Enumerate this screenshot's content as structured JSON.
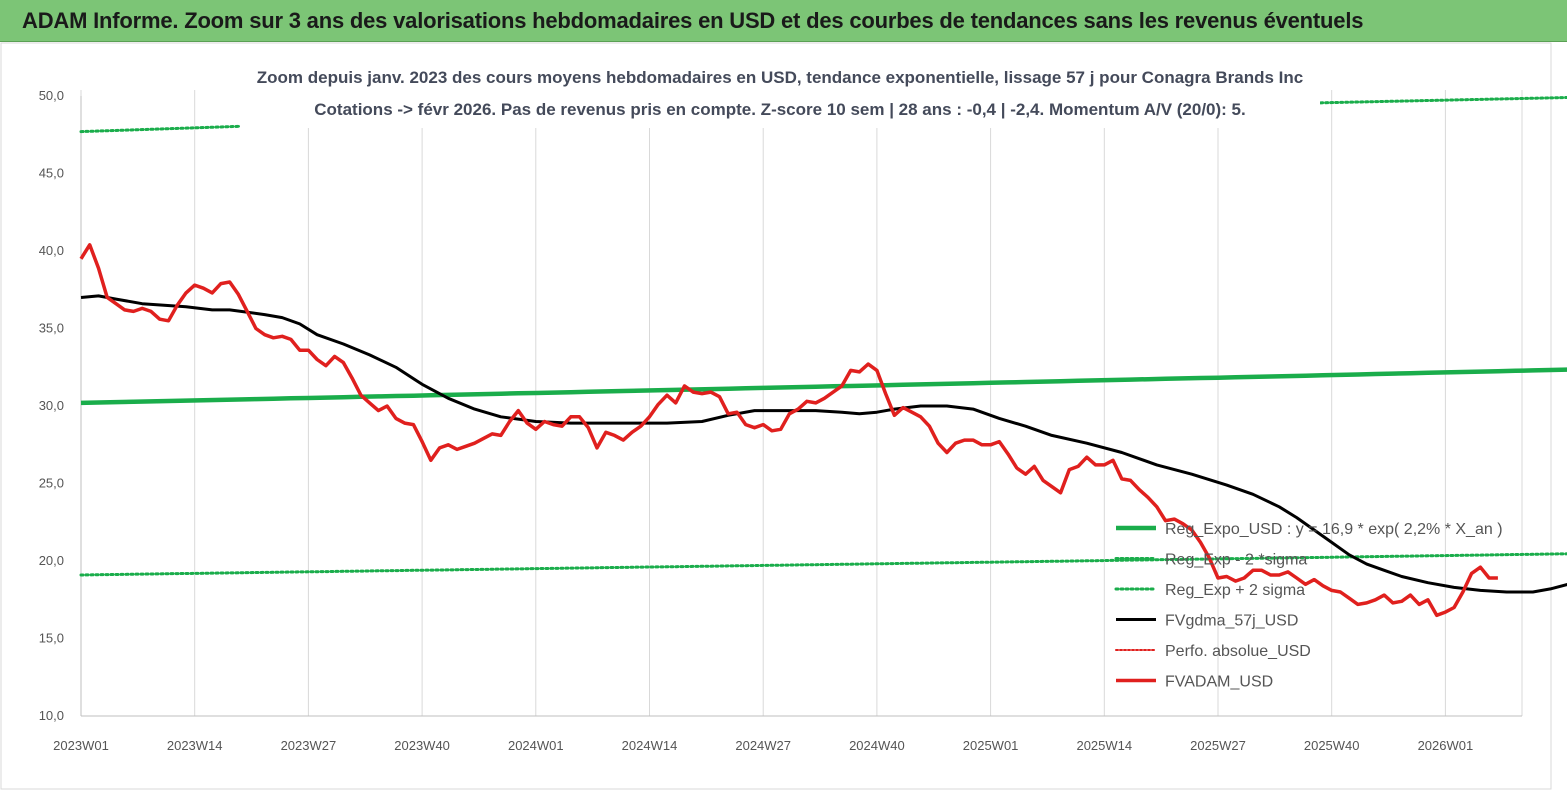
{
  "header": {
    "title": "ADAM Informe. Zoom sur 3 ans des valorisations hebdomadaires en USD et des courbes de tendances sans les revenus éventuels"
  },
  "chart_data": {
    "type": "line",
    "subtitle_line1": "Zoom depuis janv. 2023 des cours moyens hebdomadaires en USD, tendance exponentielle, lissage 57 j pour Conagra Brands Inc",
    "subtitle_line2": "Cotations -> févr 2026.  Pas de revenus pris en compte. Z-score 10 sem  | 28 ans : -0,4 | -2,4. Momentum A/V (20/0): 5.",
    "ylim": [
      10,
      50
    ],
    "y_ticks": [
      "10,0",
      "15,0",
      "20,0",
      "25,0",
      "30,0",
      "35,0",
      "40,0",
      "45,0",
      "50,0"
    ],
    "x_ticks": [
      "2023W01",
      "2023W14",
      "2023W27",
      "2023W40",
      "2024W01",
      "2024W14",
      "2024W27",
      "2024W40",
      "2025W01",
      "2025W14",
      "2025W27",
      "2025W40",
      "2026W01"
    ],
    "x_weeks_per_tick": 13,
    "x_total_weeks": 163,
    "grid": "vertical",
    "legend_position": "bottom-right",
    "colors": {
      "reg_expo": "#1aad4b",
      "sigma": "#1aad4b",
      "fvgdma": "#000000",
      "perfo": "#e0201e",
      "fvadam": "#e0201e",
      "grid": "#d9d9d9",
      "banner": "#7cc576"
    },
    "legend": [
      "Reg_Expo_USD : y = 16,9 * exp( 2,2% *  X_an )",
      "Reg_Exp - 2 *sigma",
      "Reg_Exp + 2 sigma",
      "FVgdma_57j_USD",
      "Perfo. absolue_USD",
      "FVADAM_USD"
    ],
    "series": [
      {
        "key": "reg_expo",
        "start": 30.2,
        "end": 32.4
      },
      {
        "key": "sigma_minus",
        "start": 19.1,
        "end": 20.5
      },
      {
        "key": "sigma_plus",
        "points": [
          [
            0,
            47.7
          ],
          [
            21,
            48.1
          ],
          [
            178,
            50.0
          ]
        ]
      },
      {
        "key": "fvgdma",
        "points": [
          [
            0,
            37.0
          ],
          [
            2,
            37.1
          ],
          [
            4,
            36.9
          ],
          [
            7,
            36.6
          ],
          [
            12,
            36.4
          ],
          [
            15,
            36.2
          ],
          [
            17,
            36.2
          ],
          [
            21,
            35.9
          ],
          [
            23,
            35.7
          ],
          [
            25,
            35.3
          ],
          [
            27,
            34.6
          ],
          [
            30,
            34.0
          ],
          [
            33,
            33.3
          ],
          [
            36,
            32.5
          ],
          [
            39,
            31.4
          ],
          [
            42,
            30.5
          ],
          [
            45,
            29.8
          ],
          [
            48,
            29.3
          ],
          [
            52,
            29.0
          ],
          [
            56,
            28.9
          ],
          [
            60,
            28.9
          ],
          [
            64,
            28.9
          ],
          [
            67,
            28.9
          ],
          [
            71,
            29.0
          ],
          [
            74,
            29.4
          ],
          [
            77,
            29.7
          ],
          [
            81,
            29.7
          ],
          [
            84,
            29.7
          ],
          [
            87,
            29.6
          ],
          [
            89,
            29.5
          ],
          [
            91,
            29.6
          ],
          [
            93,
            29.8
          ],
          [
            96,
            30.0
          ],
          [
            99,
            30.0
          ],
          [
            102,
            29.8
          ],
          [
            105,
            29.2
          ],
          [
            108,
            28.7
          ],
          [
            111,
            28.1
          ],
          [
            115,
            27.6
          ],
          [
            119,
            27.0
          ],
          [
            123,
            26.2
          ],
          [
            127,
            25.6
          ],
          [
            131,
            24.9
          ],
          [
            134,
            24.3
          ],
          [
            137,
            23.5
          ],
          [
            139,
            22.8
          ],
          [
            141,
            22.0
          ],
          [
            143,
            21.2
          ],
          [
            145,
            20.4
          ],
          [
            147,
            19.8
          ],
          [
            149,
            19.4
          ],
          [
            151,
            19.0
          ],
          [
            154,
            18.6
          ],
          [
            157,
            18.3
          ],
          [
            160,
            18.1
          ],
          [
            163,
            18.0
          ],
          [
            166,
            18.0
          ],
          [
            168,
            18.2
          ],
          [
            170,
            18.5
          ],
          [
            172,
            18.5
          ],
          [
            174,
            18.5
          ]
        ]
      },
      {
        "key": "fvadam",
        "points": [
          [
            0,
            39.5
          ],
          [
            1,
            40.4
          ],
          [
            2,
            38.9
          ],
          [
            3,
            37.0
          ],
          [
            4,
            36.6
          ],
          [
            5,
            36.2
          ],
          [
            6,
            36.1
          ],
          [
            7,
            36.3
          ],
          [
            8,
            36.1
          ],
          [
            9,
            35.6
          ],
          [
            10,
            35.5
          ],
          [
            11,
            36.5
          ],
          [
            12,
            37.3
          ],
          [
            13,
            37.8
          ],
          [
            14,
            37.6
          ],
          [
            15,
            37.3
          ],
          [
            16,
            37.9
          ],
          [
            17,
            38.0
          ],
          [
            18,
            37.2
          ],
          [
            19,
            36.1
          ],
          [
            20,
            35.0
          ],
          [
            21,
            34.6
          ],
          [
            22,
            34.4
          ],
          [
            23,
            34.5
          ],
          [
            24,
            34.3
          ],
          [
            25,
            33.6
          ],
          [
            26,
            33.6
          ],
          [
            27,
            33.0
          ],
          [
            28,
            32.6
          ],
          [
            29,
            33.2
          ],
          [
            30,
            32.8
          ],
          [
            31,
            31.8
          ],
          [
            32,
            30.7
          ],
          [
            33,
            30.2
          ],
          [
            34,
            29.7
          ],
          [
            35,
            30.0
          ],
          [
            36,
            29.2
          ],
          [
            37,
            28.9
          ],
          [
            38,
            28.8
          ],
          [
            39,
            27.7
          ],
          [
            40,
            26.5
          ],
          [
            41,
            27.3
          ],
          [
            42,
            27.5
          ],
          [
            43,
            27.2
          ],
          [
            44,
            27.4
          ],
          [
            45,
            27.6
          ],
          [
            46,
            27.9
          ],
          [
            47,
            28.2
          ],
          [
            48,
            28.1
          ],
          [
            49,
            29.0
          ],
          [
            50,
            29.7
          ],
          [
            51,
            28.9
          ],
          [
            52,
            28.5
          ],
          [
            53,
            29.0
          ],
          [
            54,
            28.8
          ],
          [
            55,
            28.7
          ],
          [
            56,
            29.3
          ],
          [
            57,
            29.3
          ],
          [
            58,
            28.6
          ],
          [
            59,
            27.3
          ],
          [
            60,
            28.3
          ],
          [
            61,
            28.1
          ],
          [
            62,
            27.8
          ],
          [
            63,
            28.3
          ],
          [
            64,
            28.7
          ],
          [
            65,
            29.3
          ],
          [
            66,
            30.1
          ],
          [
            67,
            30.7
          ],
          [
            68,
            30.2
          ],
          [
            69,
            31.3
          ],
          [
            70,
            30.9
          ],
          [
            71,
            30.8
          ],
          [
            72,
            30.9
          ],
          [
            73,
            30.6
          ],
          [
            74,
            29.5
          ],
          [
            75,
            29.6
          ],
          [
            76,
            28.8
          ],
          [
            77,
            28.6
          ],
          [
            78,
            28.8
          ],
          [
            79,
            28.4
          ],
          [
            80,
            28.5
          ],
          [
            81,
            29.5
          ],
          [
            82,
            29.8
          ],
          [
            83,
            30.3
          ],
          [
            84,
            30.2
          ],
          [
            85,
            30.5
          ],
          [
            86,
            30.9
          ],
          [
            87,
            31.3
          ],
          [
            88,
            32.3
          ],
          [
            89,
            32.2
          ],
          [
            90,
            32.7
          ],
          [
            91,
            32.3
          ],
          [
            92,
            30.8
          ],
          [
            93,
            29.4
          ],
          [
            94,
            29.9
          ],
          [
            95,
            29.6
          ],
          [
            96,
            29.3
          ],
          [
            97,
            28.7
          ],
          [
            98,
            27.6
          ],
          [
            99,
            27.0
          ],
          [
            100,
            27.6
          ],
          [
            101,
            27.8
          ],
          [
            102,
            27.8
          ],
          [
            103,
            27.5
          ],
          [
            104,
            27.5
          ],
          [
            105,
            27.7
          ],
          [
            106,
            26.9
          ],
          [
            107,
            26.0
          ],
          [
            108,
            25.6
          ],
          [
            109,
            26.1
          ],
          [
            110,
            25.2
          ],
          [
            111,
            24.8
          ],
          [
            112,
            24.4
          ],
          [
            113,
            25.9
          ],
          [
            114,
            26.1
          ],
          [
            115,
            26.7
          ],
          [
            116,
            26.2
          ],
          [
            117,
            26.2
          ],
          [
            118,
            26.5
          ],
          [
            119,
            25.3
          ],
          [
            120,
            25.2
          ],
          [
            121,
            24.6
          ],
          [
            122,
            24.1
          ],
          [
            123,
            23.5
          ],
          [
            124,
            22.6
          ],
          [
            125,
            22.7
          ],
          [
            126,
            22.4
          ],
          [
            127,
            22.0
          ],
          [
            128,
            21.2
          ],
          [
            129,
            20.2
          ],
          [
            130,
            18.9
          ],
          [
            131,
            19.0
          ],
          [
            132,
            18.7
          ],
          [
            133,
            18.9
          ],
          [
            134,
            19.4
          ],
          [
            135,
            19.4
          ],
          [
            136,
            19.1
          ],
          [
            137,
            19.1
          ],
          [
            138,
            19.3
          ],
          [
            139,
            18.9
          ],
          [
            140,
            18.5
          ],
          [
            141,
            18.8
          ],
          [
            142,
            18.4
          ],
          [
            143,
            18.1
          ],
          [
            144,
            18.0
          ],
          [
            145,
            17.6
          ],
          [
            146,
            17.2
          ],
          [
            147,
            17.3
          ],
          [
            148,
            17.5
          ],
          [
            149,
            17.8
          ],
          [
            150,
            17.3
          ],
          [
            151,
            17.4
          ],
          [
            152,
            17.8
          ],
          [
            153,
            17.2
          ],
          [
            154,
            17.5
          ],
          [
            155,
            16.5
          ],
          [
            156,
            16.7
          ],
          [
            157,
            17.0
          ],
          [
            158,
            18.0
          ],
          [
            159,
            19.2
          ],
          [
            160,
            19.6
          ],
          [
            161,
            18.9
          ],
          [
            162,
            18.9
          ]
        ]
      }
    ]
  }
}
